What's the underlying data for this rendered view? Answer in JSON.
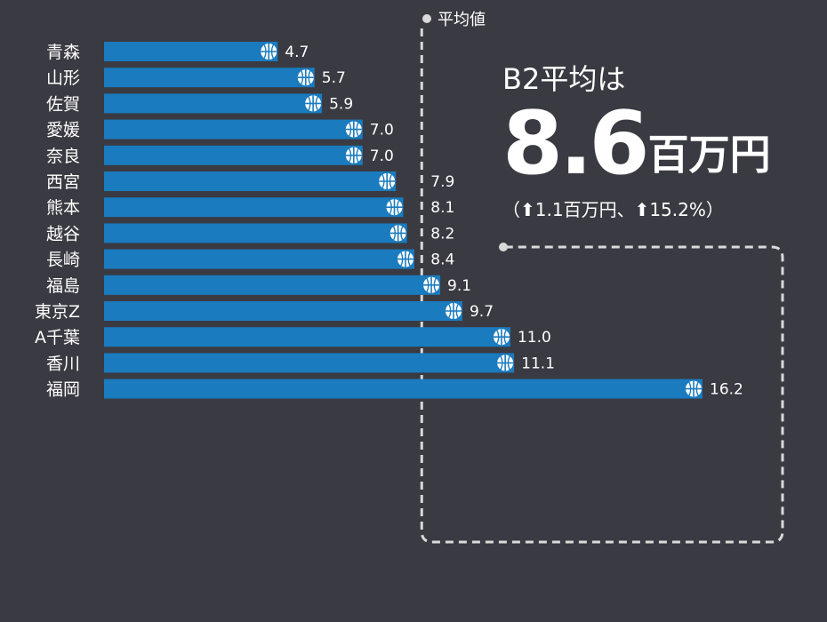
{
  "chart_data": {
    "type": "bar",
    "orientation": "horizontal",
    "categories": [
      "青森",
      "山形",
      "佐賀",
      "愛媛",
      "奈良",
      "西宮",
      "熊本",
      "越谷",
      "長崎",
      "福島",
      "東京Z",
      "A千葉",
      "香川",
      "福岡"
    ],
    "values": [
      4.7,
      5.7,
      5.9,
      7.0,
      7.0,
      7.9,
      8.1,
      8.2,
      8.4,
      9.1,
      9.7,
      11.0,
      11.1,
      16.2
    ],
    "value_labels": [
      "4.7",
      "5.7",
      "5.9",
      "7.0",
      "7.0",
      "7.9",
      "8.1",
      "8.2",
      "8.4",
      "9.1",
      "9.7",
      "11.0",
      "11.1",
      "16.2"
    ],
    "xlim": [
      0,
      16.2
    ],
    "reference_line": {
      "label": "平均値",
      "value": 8.6
    },
    "bar_color": "#1a7bbf",
    "grid": false
  },
  "callout": {
    "line1": "B2平均は",
    "big_number": "8.6",
    "big_unit": "百万円",
    "change": "（⬆1.1百万円、⬆15.2%）"
  },
  "colors": {
    "background": "#3a3a42",
    "bar": "#1a7bbf",
    "text": "#ffffff",
    "dash": "#d9d9d9"
  },
  "icons": {
    "bar_end": "basketball-icon",
    "arrow": "up-arrow-icon"
  }
}
